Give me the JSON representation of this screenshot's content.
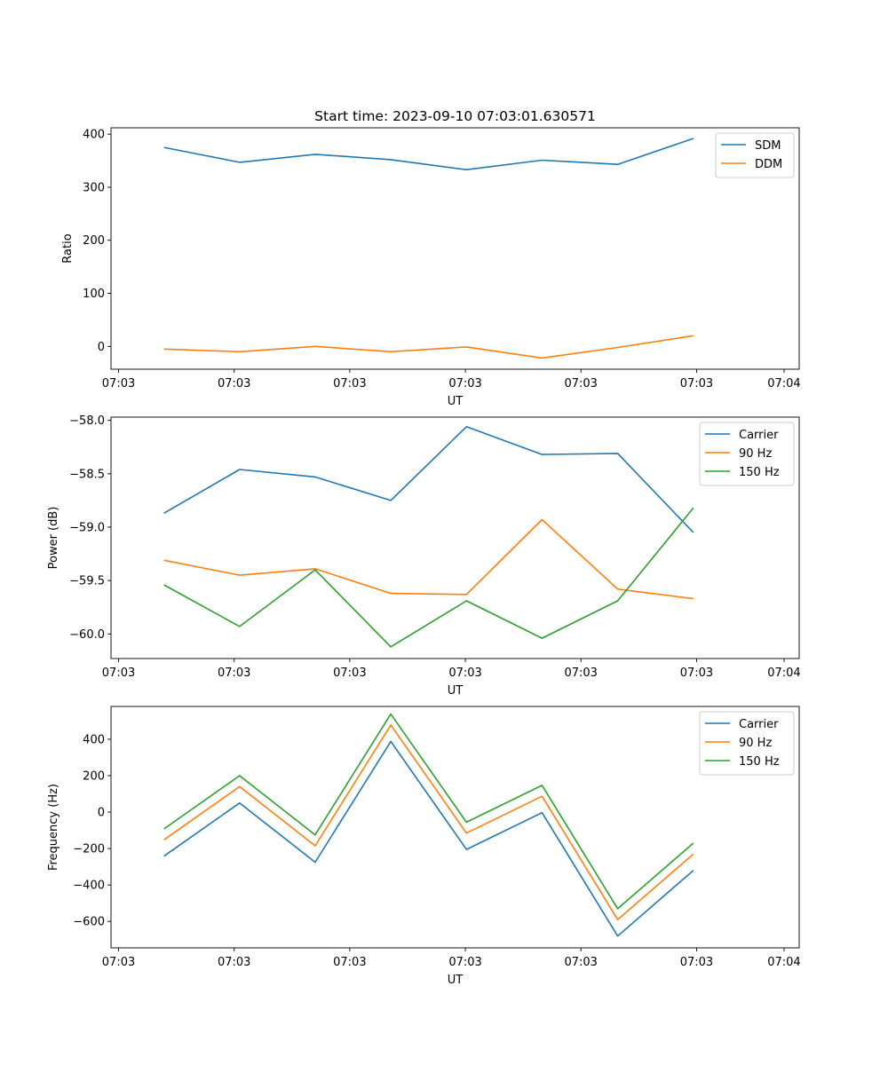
{
  "figure": {
    "title": "Start time: 2023-09-10 07:03:01.630571"
  },
  "chart_data": [
    {
      "type": "line",
      "title": "Start time: 2023-09-10 07:03:01.630571",
      "xlabel": "UT",
      "ylabel": "Ratio",
      "x": [
        1,
        2,
        3,
        4,
        5,
        6,
        7,
        8
      ],
      "xlim": [
        0.3,
        9.4
      ],
      "xticks": [
        0.4,
        1.929,
        3.457,
        4.986,
        6.514,
        8.043,
        9.2
      ],
      "xtick_labels": [
        "07:03",
        "07:03",
        "07:03",
        "07:03",
        "07:03",
        "07:03",
        "07:04"
      ],
      "ylim": [
        -43,
        412
      ],
      "yticks": [
        0,
        100,
        200,
        300,
        400
      ],
      "ytick_labels": [
        "0",
        "100",
        "200",
        "300",
        "400"
      ],
      "legend_loc": "upper right",
      "series": [
        {
          "name": "SDM",
          "color": "#1f77b4",
          "values": [
            375,
            347,
            362,
            352,
            333,
            351,
            343,
            392
          ]
        },
        {
          "name": "DDM",
          "color": "#ff7f0e",
          "values": [
            -5,
            -10,
            0,
            -10,
            -1,
            -22,
            -2,
            20
          ]
        }
      ]
    },
    {
      "type": "line",
      "xlabel": "UT",
      "ylabel": "Power (dB)",
      "x": [
        1,
        2,
        3,
        4,
        5,
        6,
        7,
        8
      ],
      "xlim": [
        0.3,
        9.4
      ],
      "xticks": [
        0.4,
        1.929,
        3.457,
        4.986,
        6.514,
        8.043,
        9.2
      ],
      "xtick_labels": [
        "07:03",
        "07:03",
        "07:03",
        "07:03",
        "07:03",
        "07:03",
        "07:04"
      ],
      "ylim": [
        -60.23,
        -57.97
      ],
      "yticks": [
        -60.0,
        -59.5,
        -59.0,
        -58.5,
        -58.0
      ],
      "ytick_labels": [
        "−60.0",
        "−59.5",
        "−59.0",
        "−58.5",
        "−58.0"
      ],
      "legend_loc": "upper right",
      "series": [
        {
          "name": "Carrier",
          "color": "#1f77b4",
          "values": [
            -58.87,
            -58.46,
            -58.53,
            -58.75,
            -58.06,
            -58.32,
            -58.31,
            -59.05
          ]
        },
        {
          "name": "90 Hz",
          "color": "#ff7f0e",
          "values": [
            -59.31,
            -59.45,
            -59.39,
            -59.62,
            -59.63,
            -58.93,
            -59.58,
            -59.67
          ]
        },
        {
          "name": "150 Hz",
          "color": "#2ca02c",
          "values": [
            -59.54,
            -59.93,
            -59.4,
            -60.12,
            -59.69,
            -60.04,
            -59.69,
            -58.82
          ]
        }
      ]
    },
    {
      "type": "line",
      "xlabel": "UT",
      "ylabel": "Frequency (Hz)",
      "x": [
        1,
        2,
        3,
        4,
        5,
        6,
        7,
        8
      ],
      "xlim": [
        0.3,
        9.4
      ],
      "xticks": [
        0.4,
        1.929,
        3.457,
        4.986,
        6.514,
        8.043,
        9.2
      ],
      "xtick_labels": [
        "07:03",
        "07:03",
        "07:03",
        "07:03",
        "07:03",
        "07:03",
        "07:04"
      ],
      "ylim": [
        -745,
        580
      ],
      "yticks": [
        -600,
        -400,
        -200,
        0,
        200,
        400
      ],
      "ytick_labels": [
        "−600",
        "−400",
        "−200",
        "0",
        "200",
        "400"
      ],
      "legend_loc": "upper right",
      "series": [
        {
          "name": "Carrier",
          "color": "#1f77b4",
          "values": [
            -242,
            50,
            -275,
            388,
            -205,
            -3,
            -680,
            -320
          ]
        },
        {
          "name": "90 Hz",
          "color": "#ff7f0e",
          "values": [
            -152,
            140,
            -185,
            478,
            -115,
            87,
            -590,
            -230
          ]
        },
        {
          "name": "150 Hz",
          "color": "#2ca02c",
          "values": [
            -92,
            200,
            -125,
            538,
            -55,
            147,
            -530,
            -170
          ]
        }
      ]
    }
  ]
}
